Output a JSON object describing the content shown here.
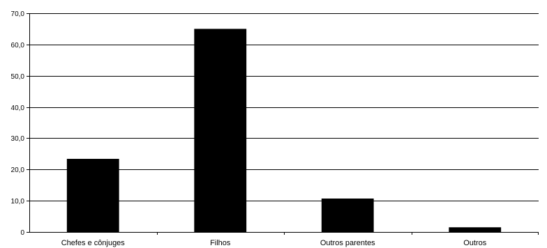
{
  "chart_data": {
    "type": "bar",
    "categories": [
      "Chefes e cônjuges",
      "Filhos",
      "Outros parentes",
      "Outros"
    ],
    "values": [
      23.4,
      65.0,
      10.7,
      1.5
    ],
    "yticks": [
      "0",
      "10,0",
      "20,0",
      "30,0",
      "40,0",
      "50,0",
      "60,0",
      "70,0"
    ],
    "ylim": [
      0,
      70
    ],
    "grid": true,
    "bar_color": "#000000",
    "title": "",
    "xlabel": "",
    "ylabel": ""
  }
}
